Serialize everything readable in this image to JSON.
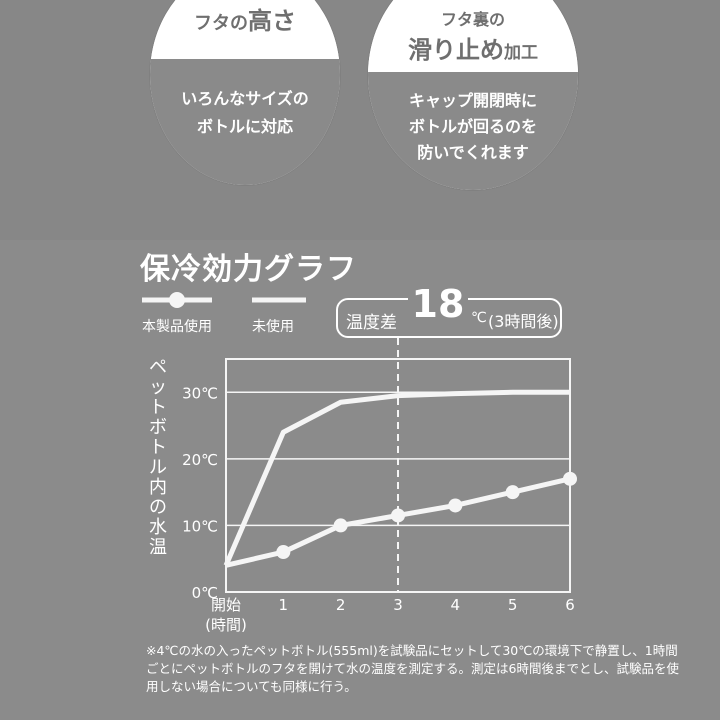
{
  "features": [
    {
      "title_main": "フタの",
      "title_big": "高さ",
      "desc": [
        "いろんなサイズの",
        "ボトルに対応"
      ]
    },
    {
      "title_top": "フタ裏の",
      "title_main": "滑り止め",
      "title_small": "加工",
      "desc": [
        "キャップ開閉時に",
        "ボトルが回るのを",
        "防いでくれます"
      ]
    }
  ],
  "chart_data": {
    "type": "line",
    "title": "保冷効力グラフ",
    "ylabel": "ペットボトル内の水温",
    "categories": [
      "開始\n(時間)",
      "1",
      "2",
      "3",
      "4",
      "5",
      "6"
    ],
    "x": [
      0,
      1,
      2,
      3,
      4,
      5,
      6
    ],
    "y_ticks": [
      "0℃",
      "10℃",
      "20℃",
      "30℃"
    ],
    "ylim": [
      0,
      35
    ],
    "xlim": [
      0,
      6
    ],
    "series": [
      {
        "name": "本製品使用",
        "values": [
          4,
          6,
          10,
          11.5,
          13,
          15,
          17
        ],
        "markers": true
      },
      {
        "name": "未使用",
        "values": [
          4,
          24,
          28.5,
          29.5,
          29.8,
          30,
          30
        ],
        "markers": false
      }
    ],
    "annotation": {
      "x": 3,
      "label": "温度差",
      "value": "18",
      "unit": "℃",
      "note": "(3時間後)"
    },
    "grid": true,
    "legend": "top-left"
  },
  "footnote": "※4℃の水の入ったペットボトル(555ml)を試験品にセットして30℃の環境下で静置し、1時間ごとにペットボトルのフタを開けて水の温度を測定する。測定は6時間後までとし、試験品を使用しない場合についても同様に行う。",
  "colors": {
    "background": "#8b8b8b",
    "line": "#f5f5f5",
    "text": "#ffffff"
  }
}
